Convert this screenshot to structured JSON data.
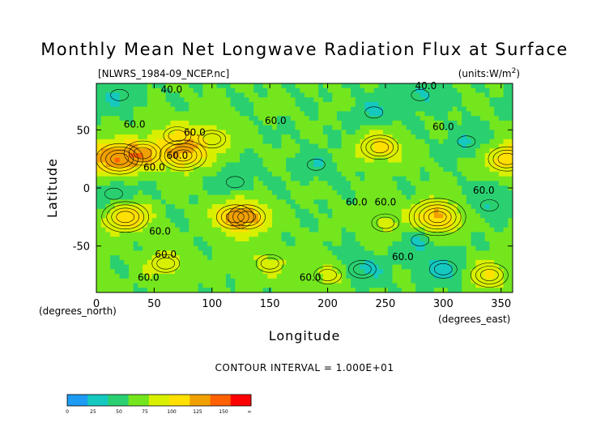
{
  "chart_data": {
    "type": "heatmap",
    "title": "Monthly Mean Net Longwave Radiation Flux at Surface",
    "source_file": "[NLWRS_1984-09_NCEP.nc]",
    "units": "(units:W/m^2)",
    "xlabel": "Longitude",
    "ylabel": "Latitude",
    "x_unit_label": "(degrees_east)",
    "y_unit_label": "(degrees_north)",
    "xlim": [
      0,
      360
    ],
    "ylim": [
      -90,
      90
    ],
    "x_ticks": [
      0,
      50,
      100,
      150,
      200,
      250,
      300,
      350
    ],
    "y_ticks": [
      50,
      0,
      -50
    ],
    "contour_interval_text": "CONTOUR INTERVAL = 1.000E+01",
    "contour_labels": [
      "40.0",
      "60.0",
      "60.0",
      "60.0",
      "60.0",
      "60.0",
      "60.0",
      "60.0",
      "60.0",
      "60.0",
      "60.0",
      "60.0",
      "40.0",
      "60.0",
      "60.0",
      "60.0"
    ],
    "colorbar": {
      "labels": [
        "0",
        "25",
        "50",
        "75",
        "100",
        "125",
        "150",
        "∞"
      ],
      "colors": [
        "#1e9bf2",
        "#15c8c0",
        "#2ad070",
        "#74e61e",
        "#d8f000",
        "#ffe000",
        "#f0a000",
        "#ff6000",
        "#ff0000"
      ]
    },
    "field_regions": [
      {
        "lon": 40,
        "lat": 30,
        "value": 110
      },
      {
        "lon": 20,
        "lat": 25,
        "value": 120
      },
      {
        "lon": 75,
        "lat": 28,
        "value": 115
      },
      {
        "lon": 100,
        "lat": 42,
        "value": 95
      },
      {
        "lon": 70,
        "lat": 45,
        "value": 90
      },
      {
        "lon": 25,
        "lat": -25,
        "value": 120
      },
      {
        "lon": 15,
        "lat": -5,
        "value": 40
      },
      {
        "lon": 130,
        "lat": -25,
        "value": 110
      },
      {
        "lon": 120,
        "lat": -25,
        "value": 105
      },
      {
        "lon": 245,
        "lat": 35,
        "value": 110
      },
      {
        "lon": 295,
        "lat": -25,
        "value": 130
      },
      {
        "lon": 250,
        "lat": -30,
        "value": 85
      },
      {
        "lon": 355,
        "lat": 25,
        "value": 110
      },
      {
        "lon": 320,
        "lat": 40,
        "value": 40
      },
      {
        "lon": 340,
        "lat": -15,
        "value": 40
      },
      {
        "lon": 240,
        "lat": 65,
        "value": 40
      },
      {
        "lon": 120,
        "lat": 5,
        "value": 45
      },
      {
        "lon": 190,
        "lat": 20,
        "value": 45
      },
      {
        "lon": 60,
        "lat": -65,
        "value": 95
      },
      {
        "lon": 200,
        "lat": -75,
        "value": 90
      },
      {
        "lon": 340,
        "lat": -75,
        "value": 100
      },
      {
        "lon": 300,
        "lat": -70,
        "value": 35
      },
      {
        "lon": 230,
        "lat": -70,
        "value": 35
      },
      {
        "lon": 150,
        "lat": -65,
        "value": 85
      },
      {
        "lon": 20,
        "lat": 80,
        "value": 40
      },
      {
        "lon": 280,
        "lat": 80,
        "value": 40
      },
      {
        "lon": 280,
        "lat": -45,
        "value": 40
      }
    ]
  }
}
